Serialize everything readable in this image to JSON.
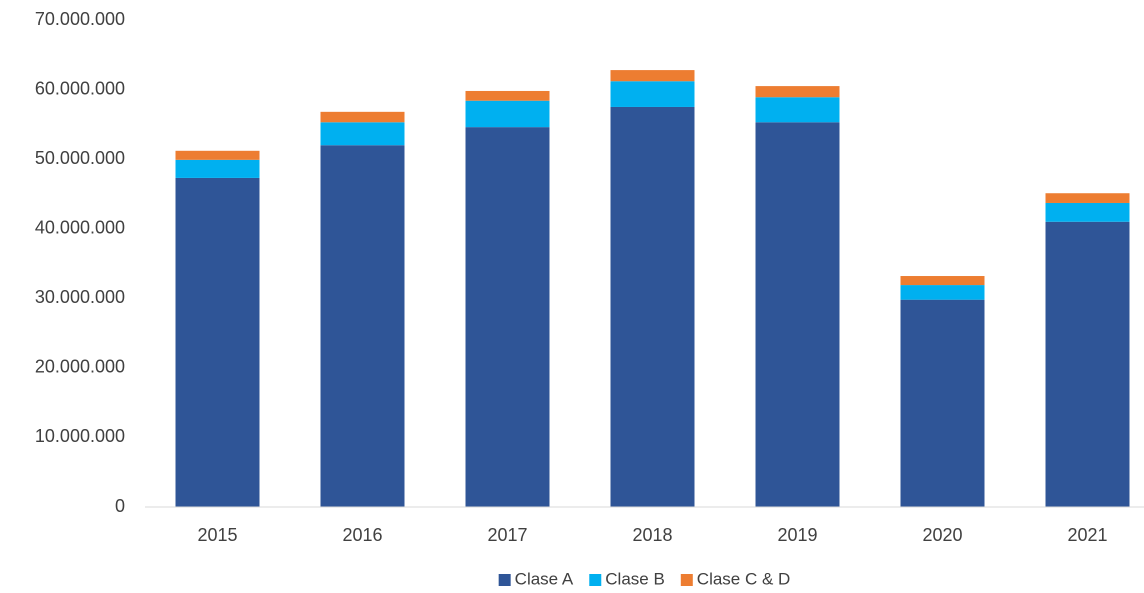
{
  "chart_data": {
    "type": "stacked_bar",
    "categories": [
      "2015",
      "2016",
      "2017",
      "2018",
      "2019",
      "2020",
      "2021"
    ],
    "series": [
      {
        "name": "Clase A",
        "color": "#2f5597",
        "values": [
          47300000,
          52000000,
          54600000,
          57500000,
          55300000,
          29800000,
          41000000
        ]
      },
      {
        "name": "Clase B",
        "color": "#00b0f0",
        "values": [
          2600000,
          3300000,
          3800000,
          3700000,
          3600000,
          2100000,
          2700000
        ]
      },
      {
        "name": "Clase C & D",
        "color": "#ed7d31",
        "values": [
          1300000,
          1500000,
          1400000,
          1600000,
          1600000,
          1300000,
          1400000
        ]
      }
    ],
    "ylim": [
      0,
      70000000
    ],
    "yticks": [
      0,
      {
        "value": 10000000,
        "label": "10.000.000"
      },
      {
        "value": 20000000,
        "label": "20.000.000"
      },
      {
        "value": 30000000,
        "label": "30.000.000"
      },
      {
        "value": 40000000,
        "label": "40.000.000"
      },
      {
        "value": 50000000,
        "label": "50.000.000"
      },
      {
        "value": 60000000,
        "label": "60.000.000"
      },
      {
        "value": 70000000,
        "label": "70.000.000"
      }
    ],
    "grid": false,
    "legend": "bottom"
  }
}
